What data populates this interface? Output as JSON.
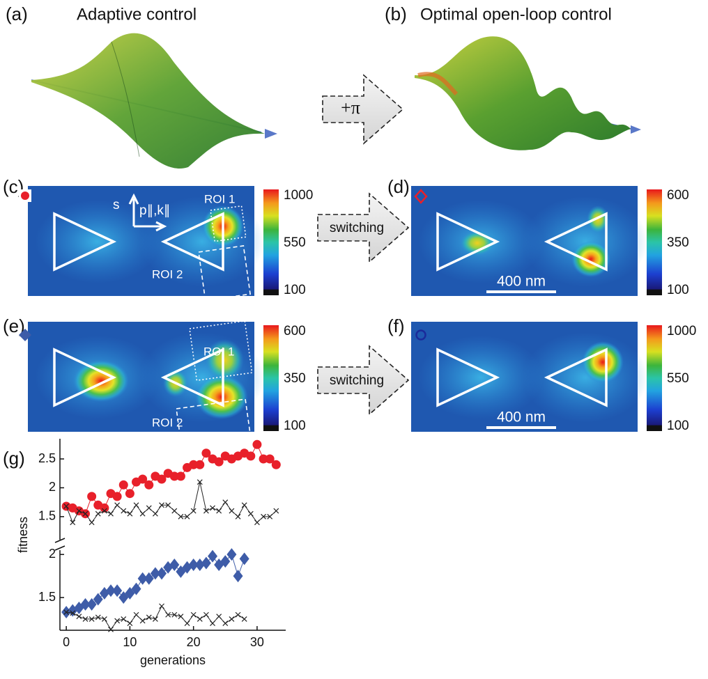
{
  "panel_a": {
    "label": "(a)",
    "title": "Adaptive control"
  },
  "panel_b": {
    "label": "(b)",
    "title": "Optimal open-loop control"
  },
  "arrow_1": "+π",
  "panel_c": {
    "label": "(c)",
    "axis_s": "s",
    "axis_p": "p∥,k∥",
    "roi_1": "ROI 1",
    "roi_2": "ROI 2",
    "colorbar": [
      1000,
      550,
      100
    ]
  },
  "arrow_2": "switching",
  "panel_d": {
    "label": "(d)",
    "scale_bar": "400 nm",
    "colorbar": [
      600,
      350,
      100
    ]
  },
  "panel_e": {
    "label": "(e)",
    "roi_1": "ROI 1",
    "roi_2": "ROI 2",
    "colorbar": [
      600,
      350,
      100
    ]
  },
  "arrow_3": "switching",
  "panel_f": {
    "label": "(f)",
    "scale_bar": "400 nm",
    "colorbar": [
      1000,
      550,
      100
    ]
  },
  "panel_g": {
    "label": "(g)"
  },
  "chart_data": [
    {
      "type": "scatter",
      "ylabel": "fitness",
      "x": [
        0,
        1,
        2,
        3,
        4,
        5,
        6,
        7,
        8,
        9,
        10,
        11,
        12,
        13,
        14,
        15,
        16,
        17,
        18,
        19,
        20,
        21,
        22,
        23,
        24,
        25,
        26,
        27,
        28,
        29,
        30,
        31,
        32,
        33
      ],
      "xlim": [
        -1,
        34.5
      ],
      "ylim": [
        1.1,
        2.85
      ],
      "yticks": [
        1.5,
        2.0,
        2.5
      ],
      "series": [
        {
          "color": "#e8202a",
          "marker": "circle",
          "values": [
            1.68,
            1.65,
            1.6,
            1.55,
            1.85,
            1.7,
            1.65,
            1.9,
            1.85,
            2.05,
            1.9,
            2.1,
            2.15,
            2.05,
            2.2,
            2.15,
            2.25,
            2.2,
            2.2,
            2.35,
            2.4,
            2.4,
            2.6,
            2.5,
            2.45,
            2.55,
            2.5,
            2.55,
            2.6,
            2.55,
            2.75,
            2.5,
            2.5,
            2.4
          ]
        },
        {
          "color": "#222222",
          "marker": "x",
          "values": [
            1.68,
            1.4,
            1.6,
            1.55,
            1.4,
            1.55,
            1.6,
            1.55,
            1.7,
            1.6,
            1.55,
            1.7,
            1.55,
            1.65,
            1.55,
            1.7,
            1.7,
            1.6,
            1.5,
            1.5,
            1.6,
            2.1,
            1.6,
            1.65,
            1.6,
            1.75,
            1.6,
            1.5,
            1.7,
            1.55,
            1.4,
            1.5,
            1.5,
            1.6
          ]
        }
      ]
    },
    {
      "type": "scatter",
      "xlabel": "generations",
      "x": [
        0,
        1,
        2,
        3,
        4,
        5,
        6,
        7,
        8,
        9,
        10,
        11,
        12,
        13,
        14,
        15,
        16,
        17,
        18,
        19,
        20,
        21,
        22,
        23,
        24,
        25,
        26,
        27,
        28
      ],
      "xlim": [
        -1,
        34.5
      ],
      "xticks": [
        0,
        10,
        20,
        30
      ],
      "ylim": [
        1.12,
        2.05
      ],
      "yticks": [
        1.5,
        2.0
      ],
      "series": [
        {
          "color": "#3e5ca8",
          "marker": "diamond",
          "values": [
            1.33,
            1.35,
            1.38,
            1.42,
            1.42,
            1.48,
            1.55,
            1.58,
            1.58,
            1.5,
            1.55,
            1.6,
            1.72,
            1.72,
            1.78,
            1.78,
            1.85,
            1.88,
            1.8,
            1.85,
            1.88,
            1.88,
            1.9,
            1.98,
            1.88,
            1.92,
            2.0,
            1.75,
            1.95
          ]
        },
        {
          "color": "#222222",
          "marker": "x",
          "values": [
            1.33,
            1.32,
            1.28,
            1.25,
            1.25,
            1.27,
            1.25,
            1.13,
            1.23,
            1.25,
            1.2,
            1.3,
            1.23,
            1.27,
            1.25,
            1.4,
            1.3,
            1.3,
            1.28,
            1.2,
            1.3,
            1.25,
            1.3,
            1.2,
            1.28,
            1.2,
            1.25,
            1.3,
            1.25
          ]
        }
      ]
    }
  ]
}
